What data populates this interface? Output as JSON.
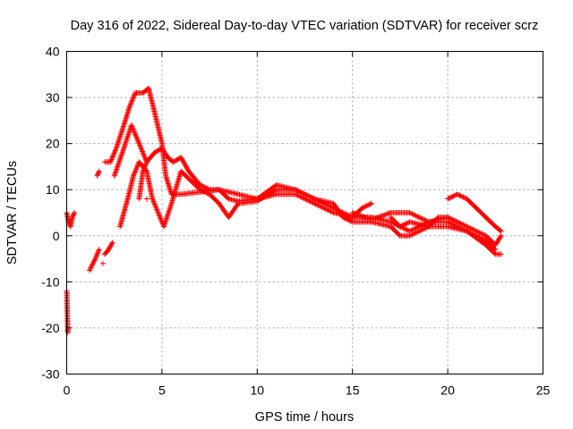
{
  "chart_data": {
    "type": "scatter",
    "title": "Day 316 of 2022, Sidereal Day-to-day VTEC variation (SDTVAR) for receiver scrz",
    "xlabel": "GPS time / hours",
    "ylabel": "SDTVAR / TECUs",
    "xlim": [
      0,
      25
    ],
    "ylim": [
      -30,
      40
    ],
    "xticks": [
      0,
      5,
      10,
      15,
      20,
      25
    ],
    "yticks": [
      -30,
      -20,
      -10,
      0,
      10,
      20,
      30,
      40
    ],
    "grid": true,
    "marker": "+",
    "series": [
      {
        "name": "SDTVAR",
        "color": "#ff0000",
        "tracks": [
          [
            [
              0,
              5
            ],
            [
              0.1,
              3
            ],
            [
              0.2,
              2
            ],
            [
              0.3,
              4
            ],
            [
              0.4,
              5
            ]
          ],
          [
            [
              0,
              -12
            ],
            [
              0.02,
              -15
            ],
            [
              0.04,
              -18
            ],
            [
              0.05,
              -20
            ],
            [
              0.06,
              -21
            ]
          ],
          [
            [
              1.2,
              -7.5
            ],
            [
              1.5,
              -5
            ],
            [
              1.7,
              -3
            ]
          ],
          [
            [
              1.6,
              13
            ],
            [
              1.7,
              14
            ]
          ],
          [
            [
              1.9,
              -6
            ]
          ],
          [
            [
              2,
              -4
            ],
            [
              2.2,
              -3
            ],
            [
              2.4,
              -1.5
            ]
          ],
          [
            [
              2,
              16
            ],
            [
              2.3,
              16
            ],
            [
              2.6,
              19
            ],
            [
              3,
              24
            ],
            [
              3.3,
              28
            ],
            [
              3.6,
              31
            ],
            [
              4,
              31
            ],
            [
              4.3,
              32
            ],
            [
              4.6,
              27
            ],
            [
              5,
              20
            ],
            [
              5.2,
              13
            ],
            [
              5.5,
              9
            ],
            [
              6,
              9
            ],
            [
              7,
              9.5
            ],
            [
              8,
              10
            ],
            [
              9,
              9
            ],
            [
              10,
              8
            ],
            [
              11,
              9
            ],
            [
              12,
              9
            ],
            [
              13,
              7
            ],
            [
              14,
              5
            ],
            [
              15,
              4
            ],
            [
              16,
              4
            ],
            [
              17,
              3
            ],
            [
              18,
              1
            ],
            [
              19,
              3
            ],
            [
              20,
              4
            ],
            [
              20.5,
              3
            ],
            [
              21,
              2
            ],
            [
              22,
              0
            ],
            [
              22.5,
              -2
            ],
            [
              22.8,
              0
            ]
          ],
          [
            [
              2.5,
              13
            ],
            [
              3,
              19
            ],
            [
              3.4,
              24
            ],
            [
              3.8,
              20
            ],
            [
              4.2,
              16
            ],
            [
              4.6,
              18
            ],
            [
              5,
              19
            ],
            [
              5.3,
              17
            ],
            [
              5.6,
              16
            ],
            [
              6,
              17
            ],
            [
              6.4,
              14
            ],
            [
              7,
              11
            ],
            [
              7.5,
              10
            ],
            [
              8,
              10
            ],
            [
              8.5,
              8
            ],
            [
              9,
              7.5
            ],
            [
              10,
              8
            ],
            [
              11,
              11
            ],
            [
              12,
              10
            ],
            [
              13,
              8
            ],
            [
              14,
              7
            ],
            [
              14.5,
              4
            ],
            [
              15,
              3
            ],
            [
              16,
              3
            ],
            [
              17,
              2
            ],
            [
              17.5,
              0
            ],
            [
              18,
              0
            ],
            [
              19,
              2
            ],
            [
              19.5,
              4
            ],
            [
              20,
              4
            ]
          ],
          [
            [
              2.8,
              2
            ],
            [
              3.2,
              8
            ],
            [
              3.5,
              13
            ],
            [
              3.8,
              16
            ],
            [
              4.2,
              14
            ],
            [
              4.5,
              8
            ],
            [
              4.9,
              4
            ],
            [
              5.1,
              2
            ],
            [
              5.5,
              7
            ],
            [
              6,
              14
            ],
            [
              6.5,
              12
            ],
            [
              7,
              10
            ],
            [
              7.5,
              9
            ],
            [
              8,
              7
            ],
            [
              8.5,
              4
            ],
            [
              9,
              7
            ],
            [
              10,
              7.5
            ],
            [
              11,
              10
            ],
            [
              12,
              10
            ],
            [
              13,
              8
            ],
            [
              14,
              6
            ],
            [
              15,
              4
            ],
            [
              15.5,
              6
            ],
            [
              16,
              7
            ]
          ],
          [
            [
              3.8,
              8
            ],
            [
              4,
              14
            ],
            [
              4.2,
              16
            ]
          ],
          [
            [
              4.2,
              8
            ]
          ],
          [
            [
              15,
              5
            ],
            [
              16,
              3.5
            ],
            [
              17,
              5
            ],
            [
              18,
              5
            ],
            [
              19,
              3
            ],
            [
              20,
              3
            ],
            [
              21,
              1
            ],
            [
              22,
              -2
            ],
            [
              22.5,
              -4
            ],
            [
              22.8,
              -4
            ]
          ],
          [
            [
              20,
              8
            ],
            [
              20.5,
              9
            ],
            [
              21,
              8
            ],
            [
              21.5,
              6
            ],
            [
              22,
              4
            ],
            [
              22.5,
              2
            ],
            [
              22.8,
              1
            ]
          ],
          [
            [
              17,
              4
            ],
            [
              17.5,
              2
            ],
            [
              18,
              3
            ],
            [
              19,
              2
            ],
            [
              20,
              2
            ],
            [
              21,
              1
            ],
            [
              22,
              -1
            ],
            [
              22.5,
              -3
            ]
          ]
        ]
      }
    ]
  }
}
